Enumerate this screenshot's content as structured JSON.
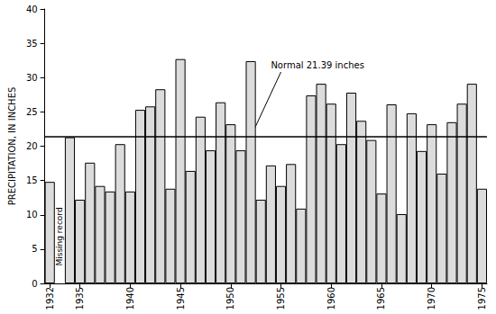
{
  "chart_data": {
    "type": "bar",
    "ylabel": "PRECIPITATION, IN INCHES",
    "categories": [
      "1932",
      null,
      null,
      "1935",
      null,
      null,
      null,
      null,
      "1940",
      null,
      null,
      null,
      null,
      "1945",
      null,
      null,
      null,
      null,
      "1950",
      null,
      null,
      null,
      null,
      "1955",
      null,
      null,
      null,
      null,
      "1960",
      null,
      null,
      null,
      null,
      "1965",
      null,
      null,
      null,
      null,
      "1970",
      null,
      null,
      null,
      null,
      "1975"
    ],
    "values": [
      14.8,
      null,
      21.3,
      12.2,
      17.6,
      14.2,
      13.4,
      20.3,
      13.4,
      25.3,
      25.8,
      28.3,
      13.8,
      32.7,
      16.4,
      24.3,
      19.4,
      26.4,
      23.2,
      19.4,
      32.4,
      12.2,
      17.2,
      14.2,
      17.4,
      10.9,
      27.4,
      29.1,
      26.2,
      20.3,
      27.8,
      23.7,
      20.9,
      13.1,
      26.1,
      10.1,
      24.8,
      19.3,
      23.2,
      16.0,
      23.5,
      26.2,
      29.1,
      13.8
    ],
    "color": "#dcdcdc",
    "ylim": [
      0,
      40
    ],
    "yticks": [
      0,
      5,
      10,
      15,
      20,
      25,
      30,
      35,
      40
    ],
    "grid": false,
    "reference_line": {
      "value": 21.39,
      "label": "Normal 21.39 inches"
    },
    "annotations": [
      {
        "text": "Missing record"
      }
    ]
  }
}
